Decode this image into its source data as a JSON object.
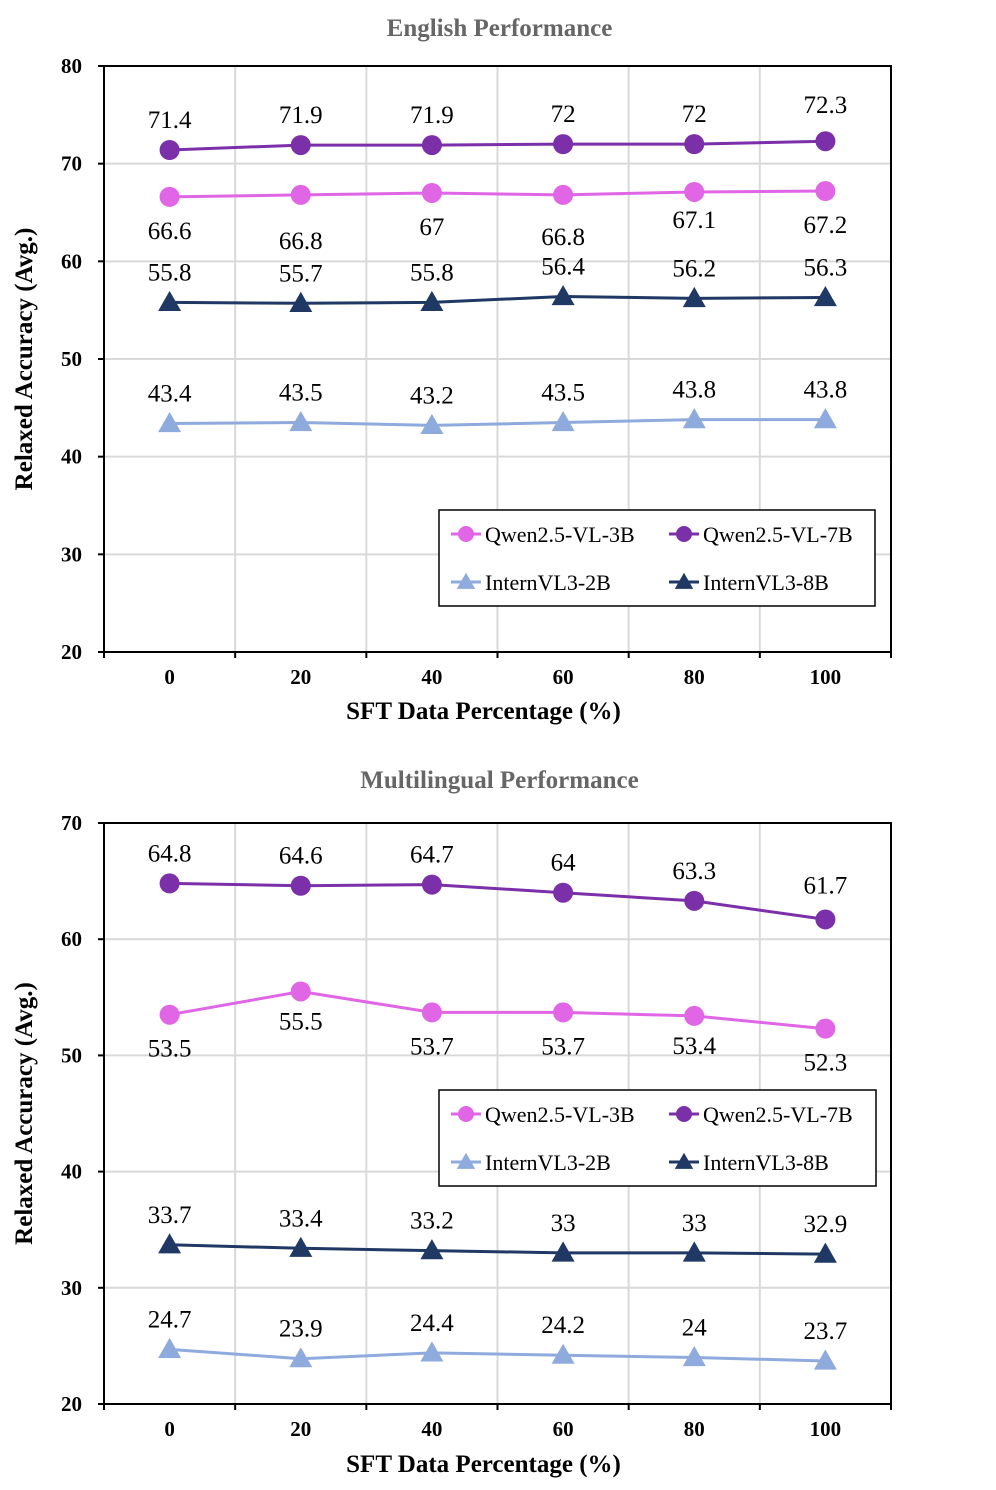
{
  "chart_data": [
    {
      "type": "line",
      "title": "English Performance",
      "xlabel": "SFT Data Percentage (%)",
      "ylabel": "Relaxed Accuracy (Avg.)",
      "categories": [
        "0",
        "20",
        "40",
        "60",
        "80",
        "100"
      ],
      "ylim": [
        20,
        80
      ],
      "yticks": [
        "20",
        "30",
        "40",
        "50",
        "60",
        "70",
        "80"
      ],
      "grid": true,
      "legend_position": "lower-right",
      "series": [
        {
          "name": "Qwen2.5-VL-3B",
          "color": "#e066e6",
          "marker": "circle",
          "values": [
            66.6,
            66.8,
            67,
            66.8,
            67.1,
            67.2
          ],
          "labels": [
            "66.6",
            "66.8",
            "67",
            "66.8",
            "67.1",
            "67.2"
          ],
          "label_position": "below"
        },
        {
          "name": "Qwen2.5-VL-7B",
          "color": "#7b2fa8",
          "marker": "circle",
          "values": [
            71.4,
            71.9,
            71.9,
            72,
            72,
            72.3
          ],
          "labels": [
            "71.4",
            "71.9",
            "71.9",
            "72",
            "72",
            "72.3"
          ],
          "label_position": "above"
        },
        {
          "name": "InternVL3-2B",
          "color": "#8faadc",
          "marker": "triangle",
          "values": [
            43.4,
            43.5,
            43.2,
            43.5,
            43.8,
            43.8
          ],
          "labels": [
            "43.4",
            "43.5",
            "43.2",
            "43.5",
            "43.8",
            "43.8"
          ],
          "label_position": "above"
        },
        {
          "name": "InternVL3-8B",
          "color": "#1f3864",
          "marker": "triangle",
          "values": [
            55.8,
            55.7,
            55.8,
            56.4,
            56.2,
            56.3
          ],
          "labels": [
            "55.8",
            "55.7",
            "55.8",
            "56.4",
            "56.2",
            "56.3"
          ],
          "label_position": "above"
        }
      ]
    },
    {
      "type": "line",
      "title": "Multilingual Performance",
      "xlabel": "SFT Data Percentage (%)",
      "ylabel": "Relaxed Accuracy (Avg.)",
      "categories": [
        "0",
        "20",
        "40",
        "60",
        "80",
        "100"
      ],
      "ylim": [
        20,
        70
      ],
      "yticks": [
        "20",
        "30",
        "40",
        "50",
        "60",
        "70"
      ],
      "grid": true,
      "legend_position": "middle-right",
      "series": [
        {
          "name": "Qwen2.5-VL-3B",
          "color": "#e066e6",
          "marker": "circle",
          "values": [
            53.5,
            55.5,
            53.7,
            53.7,
            53.4,
            52.3
          ],
          "labels": [
            "53.5",
            "55.5",
            "53.7",
            "53.7",
            "53.4",
            "52.3"
          ],
          "label_position": "below"
        },
        {
          "name": "Qwen2.5-VL-7B",
          "color": "#7b2fa8",
          "marker": "circle",
          "values": [
            64.8,
            64.6,
            64.7,
            64,
            63.3,
            61.7
          ],
          "labels": [
            "64.8",
            "64.6",
            "64.7",
            "64",
            "63.3",
            "61.7"
          ],
          "label_position": "above"
        },
        {
          "name": "InternVL3-2B",
          "color": "#8faadc",
          "marker": "triangle",
          "values": [
            24.7,
            23.9,
            24.4,
            24.2,
            24,
            23.7
          ],
          "labels": [
            "24.7",
            "23.9",
            "24.4",
            "24.2",
            "24",
            "23.7"
          ],
          "label_position": "above"
        },
        {
          "name": "InternVL3-8B",
          "color": "#1f3864",
          "marker": "triangle",
          "values": [
            33.7,
            33.4,
            33.2,
            33,
            33,
            32.9
          ],
          "labels": [
            "33.7",
            "33.4",
            "33.2",
            "33",
            "33",
            "32.9"
          ],
          "label_position": "above"
        }
      ]
    }
  ]
}
